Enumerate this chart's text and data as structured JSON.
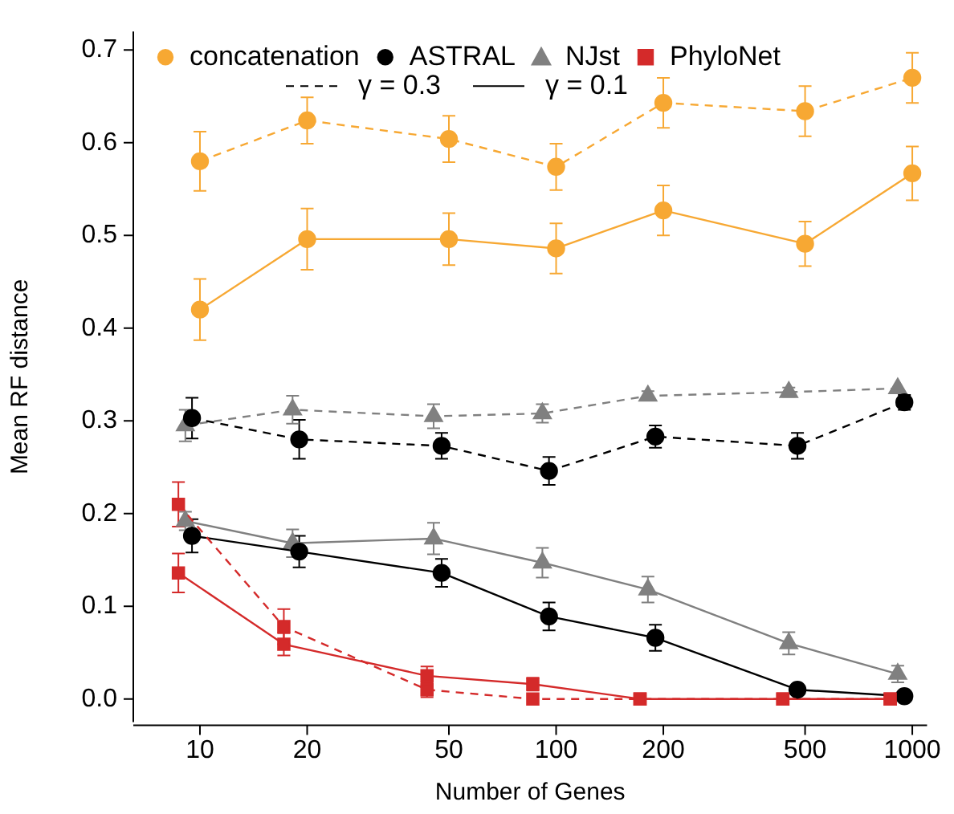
{
  "chart_data": {
    "type": "line",
    "xlabel": "Number of Genes",
    "ylabel": "Mean RF distance",
    "log": "x",
    "grid": false,
    "legend": "top",
    "xlim": [
      6.5,
      1100
    ],
    "xticks": [
      10,
      20,
      50,
      100,
      200,
      500,
      1000
    ],
    "ylim": [
      -0.025,
      0.72
    ],
    "yticks": [
      {
        "value": 0,
        "label": "0.0"
      },
      0.1,
      0.2,
      0.3,
      0.4,
      0.5,
      0.6,
      0.7
    ],
    "annotations": [
      "γ = 0.3",
      "γ = 0.1"
    ],
    "series": [
      {
        "name": "concatenation",
        "color": "#f7a833",
        "marker": "circle",
        "line_style": "dashed",
        "x": [
          10,
          20,
          50,
          100,
          200,
          500,
          1000
        ],
        "values": [
          0.58,
          0.624,
          0.604,
          0.574,
          0.643,
          0.634,
          0.67
        ],
        "errors": [
          0.032,
          0.025,
          0.025,
          0.025,
          0.027,
          0.027,
          0.027
        ]
      },
      {
        "name": "ASTRAL",
        "color": "#000000",
        "marker": "circle",
        "line_style": "dashed",
        "x": [
          9.5,
          19,
          47.7,
          95.5,
          190,
          476,
          950
        ],
        "values": [
          0.303,
          0.28,
          0.273,
          0.246,
          0.283,
          0.273,
          0.32
        ],
        "errors": [
          0.022,
          0.021,
          0.014,
          0.015,
          0.012,
          0.014,
          0.008
        ]
      },
      {
        "name": "NJst",
        "color": "#808080",
        "marker": "triangle",
        "line_style": "dashed",
        "x": [
          9.1,
          18.2,
          45.3,
          91.5,
          181,
          450,
          910
        ],
        "values": [
          0.295,
          0.312,
          0.305,
          0.308,
          0.327,
          0.331,
          0.335
        ],
        "errors": [
          0.017,
          0.015,
          0.013,
          0.01,
          0.005,
          0.005,
          null
        ]
      },
      {
        "name": "PhyloNet",
        "color": "#d42a2a",
        "marker": "square",
        "line_style": "dashed",
        "x": [
          8.7,
          17.2,
          43.4,
          86,
          172,
          433,
          867
        ],
        "values": [
          0.21,
          0.078,
          0.01,
          0,
          0,
          0,
          0
        ],
        "errors": [
          0.024,
          0.019,
          0.008,
          null,
          null,
          null,
          null
        ]
      },
      {
        "color": "#f7a833",
        "marker": "circle",
        "line_style": "solid",
        "x": [
          10,
          20,
          50,
          100,
          200,
          500,
          1000
        ],
        "values": [
          0.42,
          0.496,
          0.496,
          0.486,
          0.527,
          0.491,
          0.567
        ],
        "errors": [
          0.033,
          0.033,
          0.028,
          0.027,
          0.027,
          0.024,
          0.029
        ]
      },
      {
        "color": "#000000",
        "marker": "circle",
        "line_style": "solid",
        "x": [
          9.5,
          19,
          47.7,
          95.5,
          190,
          476,
          950
        ],
        "values": [
          0.176,
          0.159,
          0.136,
          0.089,
          0.066,
          0.01,
          0.003
        ],
        "errors": [
          0.018,
          0.017,
          0.015,
          0.015,
          0.014,
          0.004,
          0.002
        ]
      },
      {
        "color": "#808080",
        "marker": "triangle",
        "line_style": "solid",
        "x": [
          9.1,
          18.2,
          45.3,
          91.5,
          181,
          450,
          910
        ],
        "values": [
          0.192,
          0.168,
          0.173,
          0.147,
          0.118,
          0.06,
          0.027
        ],
        "errors": [
          0.01,
          0.015,
          0.017,
          0.016,
          0.014,
          0.012,
          0.009
        ]
      },
      {
        "color": "#d42a2a",
        "marker": "square",
        "line_style": "solid",
        "x": [
          8.7,
          17.2,
          43.4,
          86,
          172,
          433,
          867
        ],
        "values": [
          0.136,
          0.059,
          0.025,
          0.016,
          0,
          0,
          0
        ],
        "errors": [
          0.021,
          0.012,
          0.01,
          0.007,
          null,
          null,
          null
        ]
      }
    ]
  }
}
